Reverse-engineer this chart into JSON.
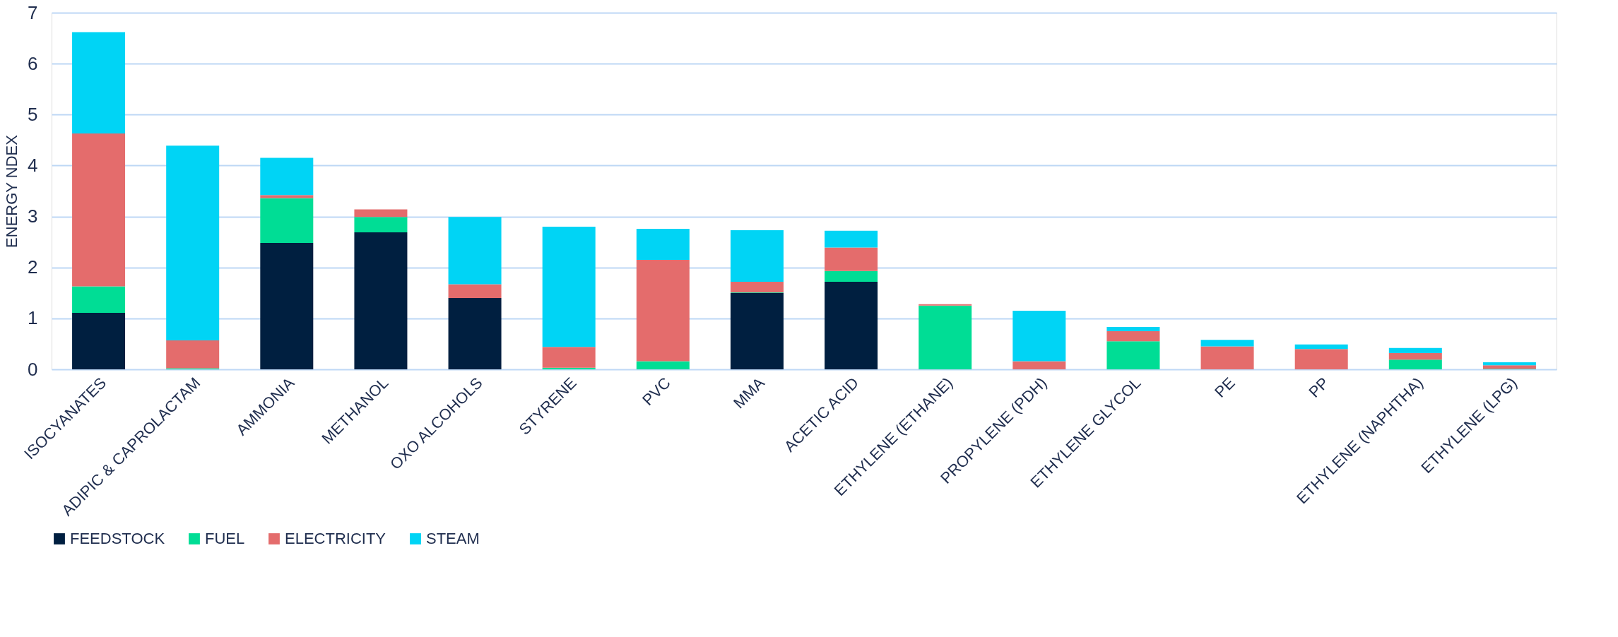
{
  "chart_data": {
    "type": "bar",
    "stacked": true,
    "ylabel": "ENERGY NDEX",
    "categories": [
      "ISOCYANATES",
      "ADIPIC & CAPROLACTAM",
      "AMMONIA",
      "METHANOL",
      "OXO ALCOHOLS",
      "STYRENE",
      "PVC",
      "MMA",
      "ACETIC ACID",
      "ETHYLENE (ETHANE)",
      "PROPYLENE (PDH)",
      "ETHYLENE GLYCOL",
      "PE",
      "PP",
      "ETHYLENE (NAPHTHA)",
      "ETHYLENE (LPG)"
    ],
    "series": [
      {
        "name": "FEEDSTOCK",
        "color": "#001f40",
        "values": [
          1.11,
          0,
          2.48,
          2.69,
          1.4,
          0,
          0,
          1.5,
          1.72,
          0,
          0,
          0,
          0,
          0,
          0,
          0
        ]
      },
      {
        "name": "FUEL",
        "color": "#00dd95",
        "values": [
          0.52,
          0.02,
          0.88,
          0.3,
          0,
          0.03,
          0.16,
          0.01,
          0.21,
          1.25,
          0,
          0.55,
          0,
          0,
          0.19,
          0.01
        ]
      },
      {
        "name": "ELECTRICITY",
        "color": "#e46c6c",
        "values": [
          3.0,
          0.55,
          0.06,
          0.15,
          0.27,
          0.41,
          1.99,
          0.21,
          0.46,
          0.03,
          0.16,
          0.2,
          0.45,
          0.4,
          0.13,
          0.07
        ]
      },
      {
        "name": "STEAM",
        "color": "#00d4f5",
        "values": [
          1.99,
          3.82,
          0.73,
          0,
          1.32,
          2.36,
          0.61,
          1.01,
          0.33,
          0,
          0.99,
          0.08,
          0.13,
          0.09,
          0.1,
          0.06
        ]
      }
    ],
    "ylim": [
      0,
      7
    ],
    "yticks": [
      0,
      1,
      2,
      3,
      4,
      5,
      6,
      7
    ],
    "grid": "y",
    "legend": "bottom"
  }
}
